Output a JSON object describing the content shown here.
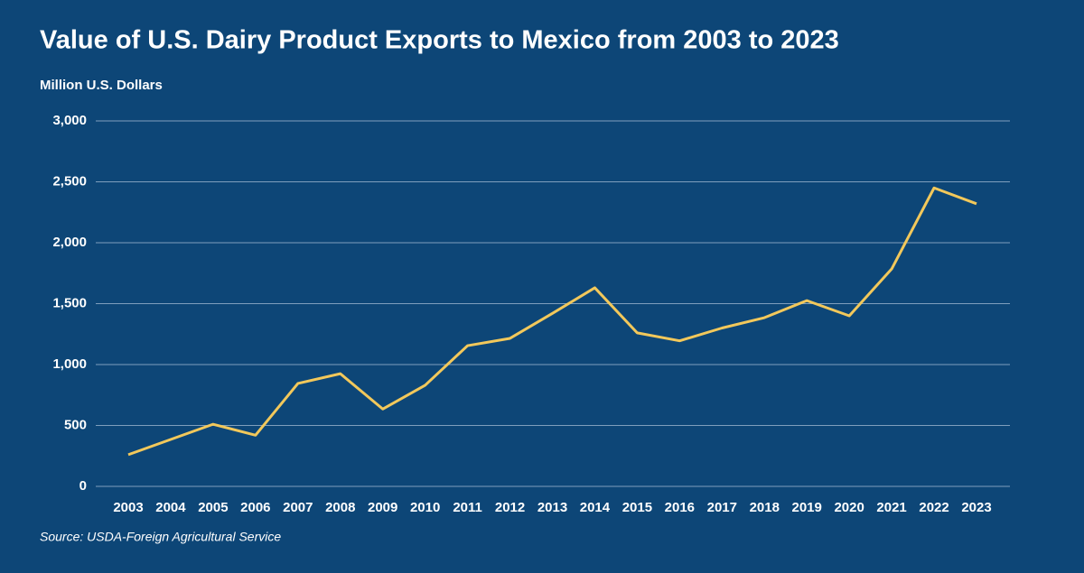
{
  "chart_data": {
    "type": "line",
    "title": "Value of U.S. Dairy Product Exports to Mexico from 2003 to 2023",
    "y_label": "Million U.S. Dollars",
    "source": "Source: USDA-Foreign Agricultural Service",
    "categories": [
      "2003",
      "2004",
      "2005",
      "2006",
      "2007",
      "2008",
      "2009",
      "2010",
      "2011",
      "2012",
      "2013",
      "2014",
      "2015",
      "2016",
      "2017",
      "2018",
      "2019",
      "2020",
      "2021",
      "2022",
      "2023"
    ],
    "series": [
      {
        "color": "#f2c85b",
        "values": [
          260,
          385,
          510,
          420,
          845,
          925,
          635,
          830,
          1155,
          1215,
          1420,
          1630,
          1260,
          1195,
          1300,
          1385,
          1525,
          1400,
          1785,
          2450,
          2320
        ]
      }
    ],
    "ylim": [
      0,
      3000
    ],
    "yticks": [
      0,
      500,
      {
        "value": 1000,
        "label": "1,000"
      },
      {
        "value": 1500,
        "label": "1,500"
      },
      {
        "value": 2000,
        "label": "2,000"
      },
      {
        "value": 2500,
        "label": "2,500"
      },
      {
        "value": 3000,
        "label": "3,000"
      }
    ],
    "grid": true
  }
}
